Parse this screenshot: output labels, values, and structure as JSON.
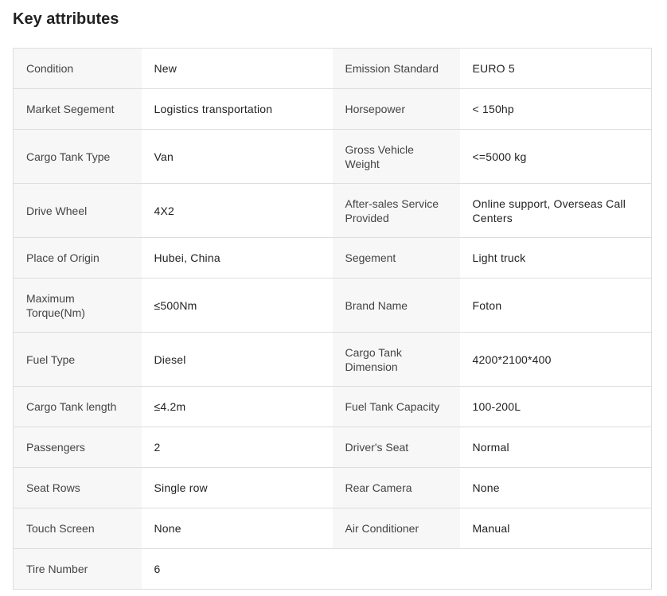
{
  "title": "Key attributes",
  "rows": [
    [
      {
        "label": "Condition",
        "value": "New"
      },
      {
        "label": "Emission Standard",
        "value": "EURO 5"
      }
    ],
    [
      {
        "label": "Market Segement",
        "value": "Logistics transportation"
      },
      {
        "label": "Horsepower",
        "value": "< 150hp"
      }
    ],
    [
      {
        "label": "Cargo Tank Type",
        "value": "Van"
      },
      {
        "label": "Gross Vehicle Weight",
        "value": "<=5000 kg"
      }
    ],
    [
      {
        "label": "Drive Wheel",
        "value": "4X2"
      },
      {
        "label": "After-sales Service Provided",
        "value": "Online support, Overseas Call Centers"
      }
    ],
    [
      {
        "label": "Place of Origin",
        "value": "Hubei, China"
      },
      {
        "label": "Segement",
        "value": "Light truck"
      }
    ],
    [
      {
        "label": "Maximum Torque(Nm)",
        "value": "≤500Nm"
      },
      {
        "label": "Brand Name",
        "value": "Foton"
      }
    ],
    [
      {
        "label": "Fuel Type",
        "value": "Diesel"
      },
      {
        "label": "Cargo Tank Dimension",
        "value": "4200*2100*400"
      }
    ],
    [
      {
        "label": "Cargo Tank length",
        "value": "≤4.2m"
      },
      {
        "label": "Fuel Tank Capacity",
        "value": "100-200L"
      }
    ],
    [
      {
        "label": "Passengers",
        "value": "2"
      },
      {
        "label": "Driver's Seat",
        "value": "Normal"
      }
    ],
    [
      {
        "label": "Seat Rows",
        "value": "Single row"
      },
      {
        "label": "Rear Camera",
        "value": "None"
      }
    ],
    [
      {
        "label": "Touch Screen",
        "value": "None"
      },
      {
        "label": "Air Conditioner",
        "value": "Manual"
      }
    ],
    [
      {
        "label": "Tire Number",
        "value": "6"
      }
    ]
  ]
}
